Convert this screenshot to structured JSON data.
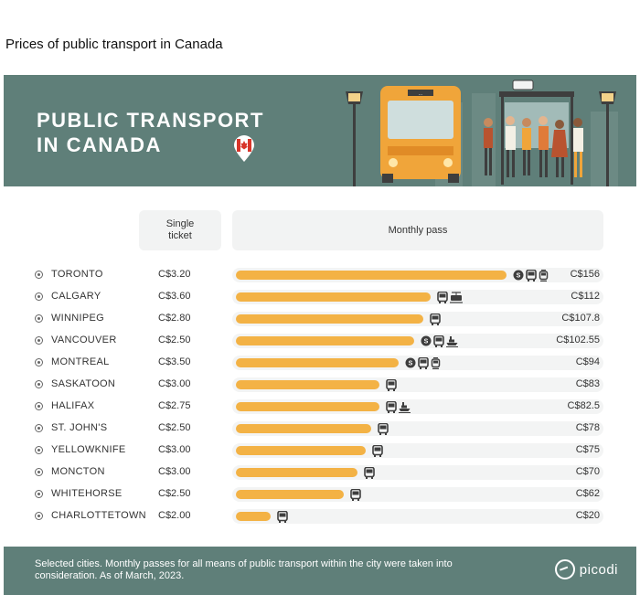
{
  "page": {
    "title": "Prices of public transport in Canada"
  },
  "banner": {
    "title": "PUBLIC TRANSPORT\nIN CANADA",
    "bus_sign": "..."
  },
  "columns": {
    "single": "Single\nticket",
    "monthly": "Monthly pass"
  },
  "colors": {
    "banner": "#5f7f79",
    "bar": "#f3b245",
    "bar_track": "#f3f4f4",
    "header_cell": "#f2f3f3"
  },
  "chart_data": {
    "type": "bar",
    "title": "PUBLIC TRANSPORT IN CANADA",
    "xlabel": "",
    "ylabel": "",
    "xlim": [
      0,
      156
    ],
    "rows": [
      {
        "city": "TORONTO",
        "single": "C$3.20",
        "monthly": 156,
        "monthly_label": "C$156",
        "modes": [
          "subway",
          "bus",
          "tram"
        ]
      },
      {
        "city": "CALGARY",
        "single": "C$3.60",
        "monthly": 112,
        "monthly_label": "C$112",
        "modes": [
          "bus",
          "light-rail"
        ]
      },
      {
        "city": "WINNIPEG",
        "single": "C$2.80",
        "monthly": 107.8,
        "monthly_label": "C$107.8",
        "modes": [
          "bus"
        ]
      },
      {
        "city": "VANCOUVER",
        "single": "C$2.50",
        "monthly": 102.55,
        "monthly_label": "C$102.55",
        "modes": [
          "subway",
          "bus",
          "ferry"
        ]
      },
      {
        "city": "MONTREAL",
        "single": "C$3.50",
        "monthly": 94,
        "monthly_label": "C$94",
        "modes": [
          "subway",
          "bus",
          "tram"
        ]
      },
      {
        "city": "SASKATOON",
        "single": "C$3.00",
        "monthly": 83,
        "monthly_label": "C$83",
        "modes": [
          "bus"
        ]
      },
      {
        "city": "HALIFAX",
        "single": "C$2.75",
        "monthly": 82.5,
        "monthly_label": "C$82.5",
        "modes": [
          "bus",
          "ferry"
        ]
      },
      {
        "city": "ST. JOHN'S",
        "single": "C$2.50",
        "monthly": 78,
        "monthly_label": "C$78",
        "modes": [
          "bus"
        ]
      },
      {
        "city": "YELLOWKNIFE",
        "single": "C$3.00",
        "monthly": 75,
        "monthly_label": "C$75",
        "modes": [
          "bus"
        ]
      },
      {
        "city": "MONCTON",
        "single": "C$3.00",
        "monthly": 70,
        "monthly_label": "C$70",
        "modes": [
          "bus"
        ]
      },
      {
        "city": "WHITEHORSE",
        "single": "C$2.50",
        "monthly": 62,
        "monthly_label": "C$62",
        "modes": [
          "bus"
        ]
      },
      {
        "city": "CHARLOTTETOWN",
        "single": "C$2.00",
        "monthly": 20,
        "monthly_label": "C$20",
        "modes": [
          "bus"
        ]
      }
    ]
  },
  "footer": {
    "note": "Selected cities. Monthly passes for all means of public transport within the city were taken into consideration. As of March, 2023.",
    "logo": "picodi"
  }
}
